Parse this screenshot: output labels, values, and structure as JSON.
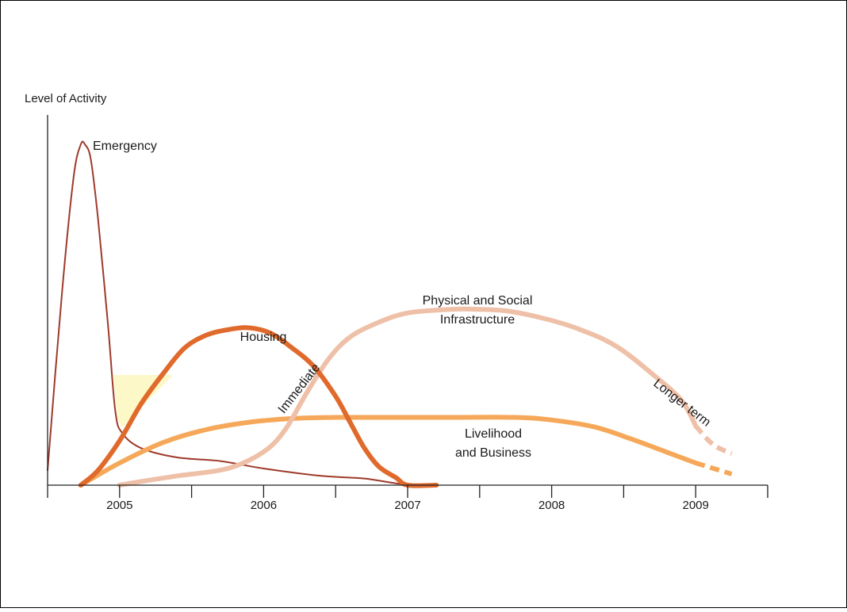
{
  "chart_data": {
    "type": "line",
    "title": "",
    "xlabel": "",
    "ylabel": "Level of Activity",
    "x_ticks": [
      "2005",
      "2006",
      "2007",
      "2008",
      "2009"
    ],
    "xlim": [
      2004.5,
      2009.5
    ],
    "ylim": [
      0,
      100
    ],
    "grid": false,
    "legend": "none",
    "phase_labels": [
      "Immediate",
      "Longer term"
    ],
    "series": [
      {
        "name": "Emergency",
        "color": "#9e3a2b",
        "points": [
          [
            2004.5,
            4
          ],
          [
            2004.6,
            52
          ],
          [
            2004.68,
            83
          ],
          [
            2004.73,
            92
          ],
          [
            2004.76,
            92
          ],
          [
            2004.8,
            88
          ],
          [
            2004.85,
            72
          ],
          [
            2004.92,
            43
          ],
          [
            2004.97,
            20
          ],
          [
            2005.02,
            14
          ],
          [
            2005.15,
            10
          ],
          [
            2005.4,
            7.5
          ],
          [
            2005.7,
            6.5
          ],
          [
            2006.0,
            4.5
          ],
          [
            2006.4,
            2.5
          ],
          [
            2006.7,
            1.8
          ],
          [
            2006.92,
            0.5
          ],
          [
            2007.1,
            0
          ],
          [
            2007.2,
            0
          ]
        ]
      },
      {
        "name": "Housing",
        "color": "#e06a2c",
        "points": [
          [
            2004.73,
            0
          ],
          [
            2004.85,
            4
          ],
          [
            2005.0,
            12
          ],
          [
            2005.15,
            22
          ],
          [
            2005.3,
            30
          ],
          [
            2005.45,
            37
          ],
          [
            2005.6,
            40.5
          ],
          [
            2005.75,
            42
          ],
          [
            2005.9,
            42.5
          ],
          [
            2006.05,
            41
          ],
          [
            2006.2,
            37
          ],
          [
            2006.35,
            32
          ],
          [
            2006.5,
            24
          ],
          [
            2006.6,
            17
          ],
          [
            2006.7,
            10
          ],
          [
            2006.8,
            5
          ],
          [
            2006.92,
            2
          ],
          [
            2007.0,
            0
          ],
          [
            2007.2,
            0
          ]
        ]
      },
      {
        "name": "Physical and Social Infrastructure",
        "color": "#efc0a8",
        "points": [
          [
            2005.0,
            0
          ],
          [
            2005.15,
            1
          ],
          [
            2005.4,
            2.5
          ],
          [
            2005.75,
            4.5
          ],
          [
            2006.0,
            9
          ],
          [
            2006.15,
            15
          ],
          [
            2006.3,
            25
          ],
          [
            2006.45,
            34
          ],
          [
            2006.6,
            40
          ],
          [
            2006.8,
            44
          ],
          [
            2007.0,
            46.5
          ],
          [
            2007.3,
            47.5
          ],
          [
            2007.5,
            47.5
          ],
          [
            2007.7,
            47
          ],
          [
            2007.95,
            45
          ],
          [
            2008.2,
            42
          ],
          [
            2008.45,
            37.5
          ],
          [
            2008.7,
            30
          ],
          [
            2008.9,
            23
          ],
          [
            2009.0,
            16
          ]
        ],
        "extension": [
          [
            2009.12,
            11
          ],
          [
            2009.25,
            8.5
          ]
        ]
      },
      {
        "name": "Livelihood and Business",
        "color": "#f6a85a",
        "points": [
          [
            2004.73,
            0
          ],
          [
            2005.0,
            6
          ],
          [
            2005.3,
            11.5
          ],
          [
            2005.6,
            15
          ],
          [
            2005.9,
            17
          ],
          [
            2006.2,
            18
          ],
          [
            2006.5,
            18.3
          ],
          [
            2006.9,
            18.3
          ],
          [
            2007.3,
            18.3
          ],
          [
            2007.75,
            18.3
          ],
          [
            2008.0,
            17.6
          ],
          [
            2008.3,
            15.7
          ],
          [
            2008.55,
            12.5
          ],
          [
            2008.8,
            8.9
          ],
          [
            2009.0,
            6
          ]
        ],
        "extension": [
          [
            2009.1,
            4.8
          ],
          [
            2009.25,
            3
          ]
        ]
      }
    ]
  }
}
